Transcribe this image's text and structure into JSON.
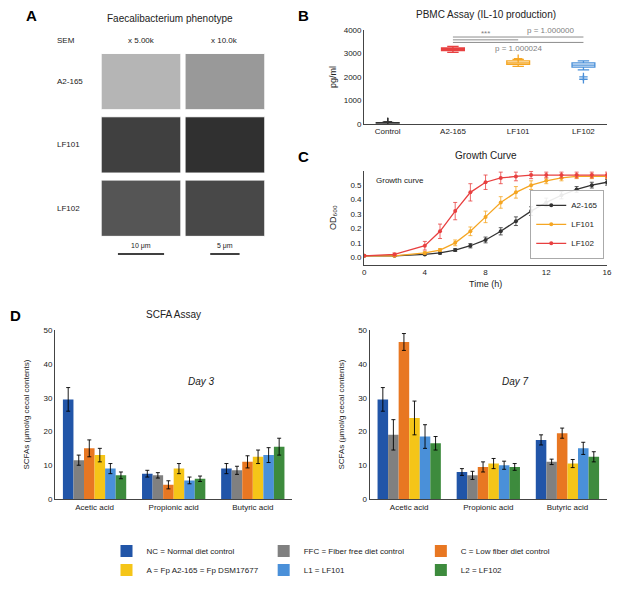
{
  "chart_data": [
    {
      "type": "image",
      "title": "Faecalibacterium phenotype",
      "annotations": [
        "A",
        "SEM",
        "x 5.00k",
        "x 10.0k",
        "A2-165",
        "LF101",
        "LF102",
        "10 μm",
        "5 μm"
      ]
    },
    {
      "type": "box",
      "title": "PBMC Assay (IL-10 production)",
      "annotations": [
        "B"
      ],
      "categories": [
        "Control",
        "A2-165",
        "LF101",
        "LF102"
      ],
      "colors": [
        "#333333",
        "#e84040",
        "#f5a623",
        "#4a90d9"
      ],
      "boxes": [
        {
          "median": 30,
          "q1": 20,
          "q3": 45,
          "whislo": 10,
          "whishi": 60,
          "fliers": [
            70,
            75,
            80
          ]
        },
        {
          "median": 3180,
          "q1": 3120,
          "q3": 3240,
          "whislo": 3050,
          "whishi": 3300,
          "fliers": []
        },
        {
          "median": 2600,
          "q1": 2530,
          "q3": 2680,
          "whislo": 2450,
          "whishi": 2750,
          "fliers": [
            2780
          ]
        },
        {
          "median": 2500,
          "q1": 2420,
          "q3": 2600,
          "whislo": 2300,
          "whishi": 2680,
          "fliers": [
            2000,
            1900
          ]
        }
      ],
      "brackets": [
        {
          "from": "A2-165",
          "to": "LF102",
          "y": 3700,
          "text": "p = 1.000000"
        },
        {
          "from": "A2-165",
          "to": "LF101",
          "y": 3580,
          "text": "***"
        },
        {
          "from": "A2-165",
          "to": "LF102",
          "y": 3470,
          "text": "p = 1.000024"
        }
      ],
      "ylabel": "pg/ml",
      "ylim": [
        0,
        4000
      ],
      "yticks": [
        0,
        1000,
        2000,
        3000,
        4000
      ],
      "grid": false
    },
    {
      "type": "line",
      "title": "Growth Curve",
      "subtitle": "Growth curve",
      "annotations": [
        "C"
      ],
      "xlabel": "Time (h)",
      "ylabel": "OD₆₀₀",
      "xlim": [
        0,
        16
      ],
      "xticks": [
        0,
        4,
        8,
        12,
        16
      ],
      "ylim": [
        -0.05,
        0.6
      ],
      "yticks": [
        {
          "value": 0.0,
          "label": "0.0"
        },
        0.1,
        0.2,
        0.3,
        0.4,
        0.5
      ],
      "legend": "lower right",
      "marker": "circle",
      "grid": false,
      "series": [
        {
          "name": "A2-165",
          "color": "#333333",
          "x": [
            0,
            2,
            4,
            5,
            6,
            7,
            8,
            9,
            10,
            11,
            12,
            13,
            14,
            15,
            16
          ],
          "values": [
            0.01,
            0.01,
            0.02,
            0.03,
            0.05,
            0.08,
            0.12,
            0.18,
            0.25,
            0.32,
            0.38,
            0.43,
            0.47,
            0.5,
            0.52
          ],
          "errors": [
            0.005,
            0.005,
            0.005,
            0.008,
            0.01,
            0.015,
            0.02,
            0.025,
            0.03,
            0.03,
            0.03,
            0.025,
            0.02,
            0.02,
            0.02
          ]
        },
        {
          "name": "LF101",
          "color": "#f5a623",
          "x": [
            0,
            2,
            4,
            5,
            6,
            7,
            8,
            9,
            10,
            11,
            12,
            13,
            14,
            15,
            16
          ],
          "values": [
            0.01,
            0.01,
            0.03,
            0.05,
            0.1,
            0.18,
            0.28,
            0.38,
            0.45,
            0.5,
            0.53,
            0.55,
            0.56,
            0.56,
            0.56
          ],
          "errors": [
            0.005,
            0.005,
            0.008,
            0.01,
            0.02,
            0.03,
            0.04,
            0.04,
            0.04,
            0.03,
            0.02,
            0.02,
            0.015,
            0.015,
            0.015
          ]
        },
        {
          "name": "LF102",
          "color": "#e84040",
          "x": [
            0,
            2,
            4,
            5,
            6,
            7,
            8,
            9,
            10,
            11,
            12,
            13,
            14,
            15,
            16
          ],
          "values": [
            0.01,
            0.02,
            0.08,
            0.18,
            0.32,
            0.45,
            0.52,
            0.55,
            0.56,
            0.57,
            0.57,
            0.57,
            0.57,
            0.57,
            0.57
          ],
          "errors": [
            0.005,
            0.01,
            0.03,
            0.05,
            0.06,
            0.06,
            0.05,
            0.04,
            0.03,
            0.025,
            0.02,
            0.02,
            0.02,
            0.02,
            0.02
          ]
        }
      ]
    },
    {
      "type": "bar",
      "title": "SCFA Assay",
      "subtitle": "Day 3",
      "annotations": [
        "D"
      ],
      "categories": [
        "Acetic acid",
        "Propionic acid",
        "Butyric acid"
      ],
      "ylabel": "SCFAs (μmol/g cecal contents)",
      "ylim": [
        0,
        50
      ],
      "yticks": [
        0,
        10,
        20,
        30,
        40,
        50
      ],
      "grid": false,
      "series": [
        {
          "color": "#2155a8",
          "values": [
            29.5,
            7.5,
            9.0
          ],
          "errors": [
            3.5,
            1.0,
            1.5
          ]
        },
        {
          "color": "#808080",
          "values": [
            11.5,
            7.0,
            8.5
          ],
          "errors": [
            1.5,
            0.8,
            1.2
          ]
        },
        {
          "color": "#e87722",
          "values": [
            15.0,
            4.2,
            11.0
          ],
          "errors": [
            2.5,
            1.2,
            1.8
          ]
        },
        {
          "color": "#f5c518",
          "values": [
            13.0,
            9.0,
            12.5
          ],
          "errors": [
            2.0,
            1.5,
            2.0
          ]
        },
        {
          "color": "#4a90d9",
          "values": [
            9.0,
            5.5,
            13.0
          ],
          "errors": [
            1.5,
            1.0,
            2.2
          ]
        },
        {
          "color": "#3d8b3d",
          "values": [
            7.0,
            6.0,
            15.5
          ],
          "errors": [
            1.0,
            0.8,
            2.5
          ]
        }
      ]
    },
    {
      "type": "bar",
      "subtitle": "Day 7",
      "categories": [
        "Acetic acid",
        "Propionic acid",
        "Butyric acid"
      ],
      "ylabel": "SCFAs (μmol/g cecal contents)",
      "ylim": [
        0,
        50
      ],
      "yticks": [
        0,
        10,
        20,
        30,
        40,
        50
      ],
      "grid": false,
      "legend": "bottom",
      "series": [
        {
          "name": "NC = Normal diet control",
          "color": "#2155a8",
          "values": [
            29.5,
            8.0,
            17.5
          ],
          "errors": [
            3.5,
            1.0,
            1.5
          ]
        },
        {
          "name": "FFC = Fiber free diet control",
          "color": "#808080",
          "values": [
            19.0,
            7.0,
            11.0
          ],
          "errors": [
            4.5,
            1.2,
            0.8
          ]
        },
        {
          "name": "C = Low fiber diet control",
          "color": "#e87722",
          "values": [
            46.5,
            9.5,
            19.5
          ],
          "errors": [
            2.5,
            1.5,
            1.5
          ]
        },
        {
          "name": "A = Fp A2-165 = Fp DSM17677",
          "color": "#f5c518",
          "values": [
            24.0,
            10.5,
            10.5
          ],
          "errors": [
            5.0,
            1.5,
            1.2
          ]
        },
        {
          "name": "L1 = LF101",
          "color": "#4a90d9",
          "values": [
            18.5,
            10.0,
            15.0
          ],
          "errors": [
            3.5,
            1.2,
            1.8
          ]
        },
        {
          "name": "L2 = LF102",
          "color": "#3d8b3d",
          "values": [
            16.5,
            9.5,
            12.5
          ],
          "errors": [
            2.0,
            1.0,
            1.5
          ]
        }
      ]
    }
  ]
}
